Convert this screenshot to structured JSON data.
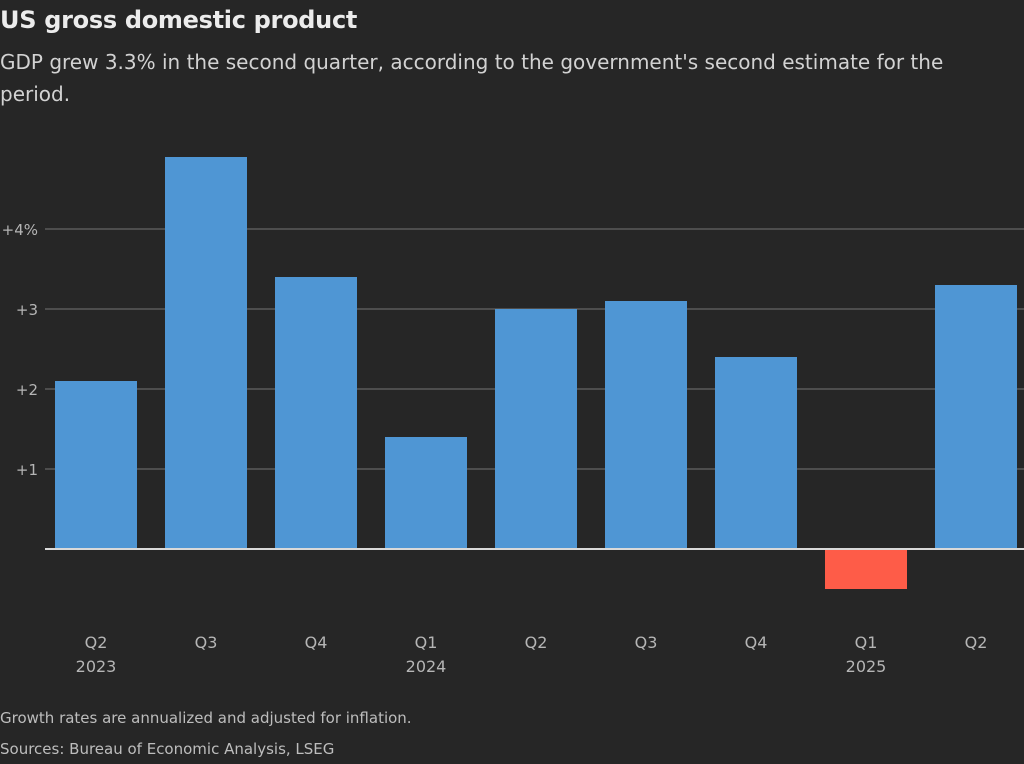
{
  "header": {
    "title": "US gross domestic product",
    "subtitle": "GDP grew 3.3% in the second quarter, according to the government's second estimate for the period."
  },
  "footer": {
    "note": "Growth rates are annualized and adjusted for inflation.",
    "source": "Sources: Bureau of Economic Analysis, LSEG"
  },
  "colors": {
    "positive": "#4f96d4",
    "negative": "#fe5c48",
    "background": "#262626",
    "gridline": "#5a5a5a",
    "baseline": "#d9d9d9",
    "tick_text": "#b5b5b5"
  },
  "chart_data": {
    "type": "bar",
    "title": "US gross domestic product",
    "subtitle": "GDP grew 3.3% in the second quarter, according to the government's second estimate for the period.",
    "xlabel": "",
    "ylabel": "",
    "categories": [
      "Q2 2023",
      "Q3 2023",
      "Q4 2023",
      "Q1 2024",
      "Q2 2024",
      "Q3 2024",
      "Q4 2024",
      "Q1 2025",
      "Q2 2025"
    ],
    "category_labels": [
      {
        "quarter": "Q2",
        "year": "2023"
      },
      {
        "quarter": "Q3",
        "year": ""
      },
      {
        "quarter": "Q4",
        "year": ""
      },
      {
        "quarter": "Q1",
        "year": "2024"
      },
      {
        "quarter": "Q2",
        "year": ""
      },
      {
        "quarter": "Q3",
        "year": ""
      },
      {
        "quarter": "Q4",
        "year": ""
      },
      {
        "quarter": "Q1",
        "year": "2025"
      },
      {
        "quarter": "Q2",
        "year": ""
      }
    ],
    "values": [
      2.1,
      4.9,
      3.4,
      1.4,
      3.0,
      3.1,
      2.4,
      -0.5,
      3.3
    ],
    "unit": "%",
    "ylim": [
      -0.9,
      5.0
    ],
    "yticks": [
      {
        "value": 4,
        "label": "+4%"
      },
      {
        "value": 3,
        "label": "+3"
      },
      {
        "value": 2,
        "label": "+2"
      },
      {
        "value": 1,
        "label": "+1"
      }
    ],
    "grid": true,
    "legend": "none"
  }
}
